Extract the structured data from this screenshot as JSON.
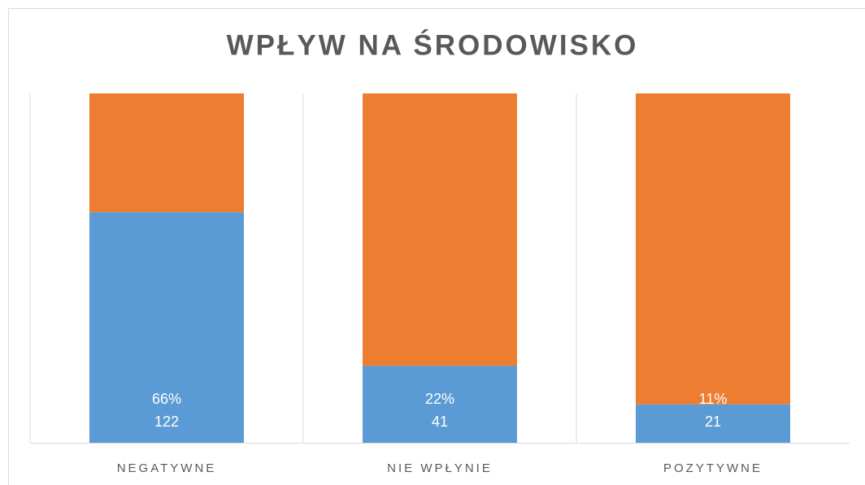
{
  "chart_data": {
    "type": "stacked_bar_100",
    "title": "WPŁYW NA ŚRODOWISKO",
    "categories": [
      "NEGATYWNE",
      "NIE WPŁYNIE",
      "POZYTYWNE"
    ],
    "series": [
      {
        "color": "#5b9bd5",
        "values": [
          66,
          22,
          11
        ],
        "value_labels": [
          "66%",
          "22%",
          "11%"
        ],
        "counts": [
          122,
          41,
          21
        ]
      },
      {
        "color": "#ed7d31",
        "values": [
          34,
          78,
          89
        ]
      }
    ],
    "ylim": [
      0,
      100
    ]
  }
}
